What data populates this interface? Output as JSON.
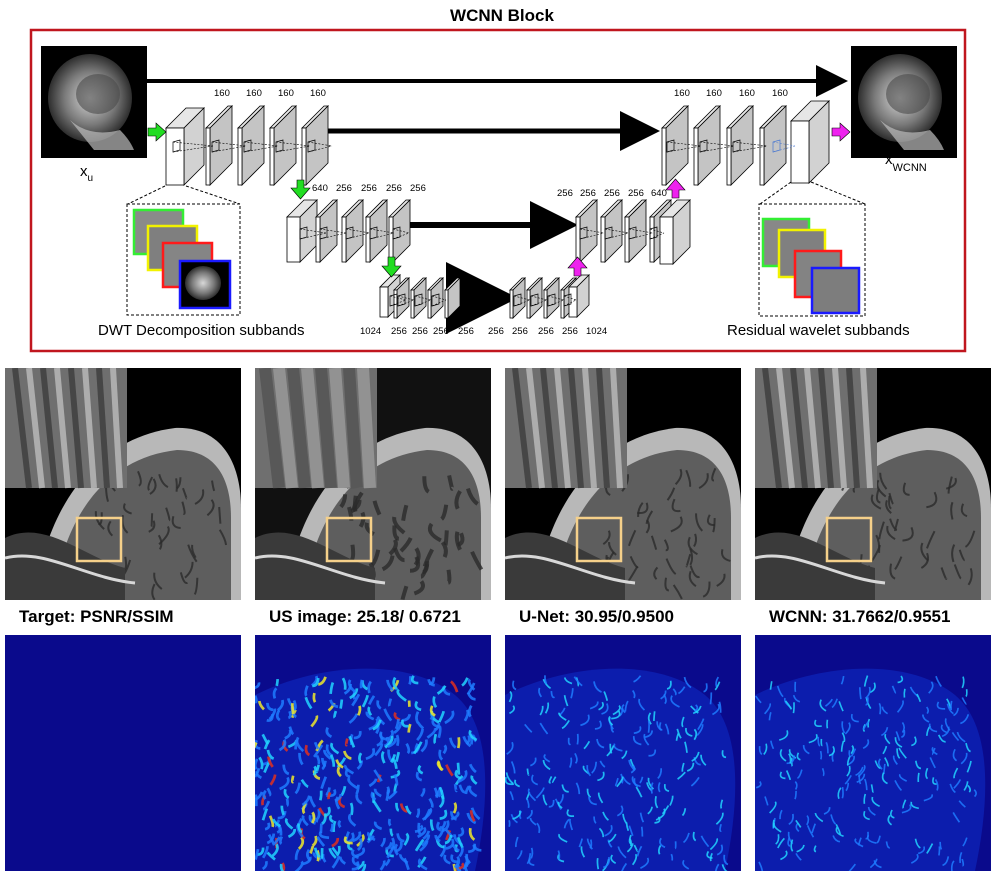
{
  "block": {
    "title": "WCNN Block",
    "input_label": "x",
    "input_sub": "u",
    "output_label": "x",
    "output_sub": "WCNN",
    "dwt_label": "DWT Decomposition subbands",
    "residual_label": "Residual wavelet subbands"
  },
  "channels": {
    "top_enc": [
      "160",
      "160",
      "160",
      "160"
    ],
    "top_dec": [
      "160",
      "160",
      "160",
      "160"
    ],
    "mid_enc": [
      "640",
      "256",
      "256",
      "256",
      "256"
    ],
    "mid_dec": [
      "256",
      "256",
      "256",
      "256",
      "640"
    ],
    "bot_enc": [
      "1024",
      "256",
      "256",
      "256",
      "256"
    ],
    "bot_dec": [
      "256",
      "256",
      "256",
      "256",
      "1024"
    ]
  },
  "colors": {
    "block_border": "#c0161e",
    "down_arrow": "#22dd22",
    "up_arrow": "#ee22ee",
    "roi_box": "#f5d08a",
    "subband_borders": [
      "#33ee33",
      "#f2f200",
      "#ff1a1a",
      "#1a1aff"
    ]
  },
  "results": [
    {
      "caption": "Target: PSNR/SSIM",
      "error_level": 0.0
    },
    {
      "caption": "US image: 25.18/ 0.6721",
      "error_level": 1.0
    },
    {
      "caption": "U-Net: 30.95/0.9500",
      "error_level": 0.35
    },
    {
      "caption": "WCNN: 31.7662/0.9551",
      "error_level": 0.3
    }
  ]
}
